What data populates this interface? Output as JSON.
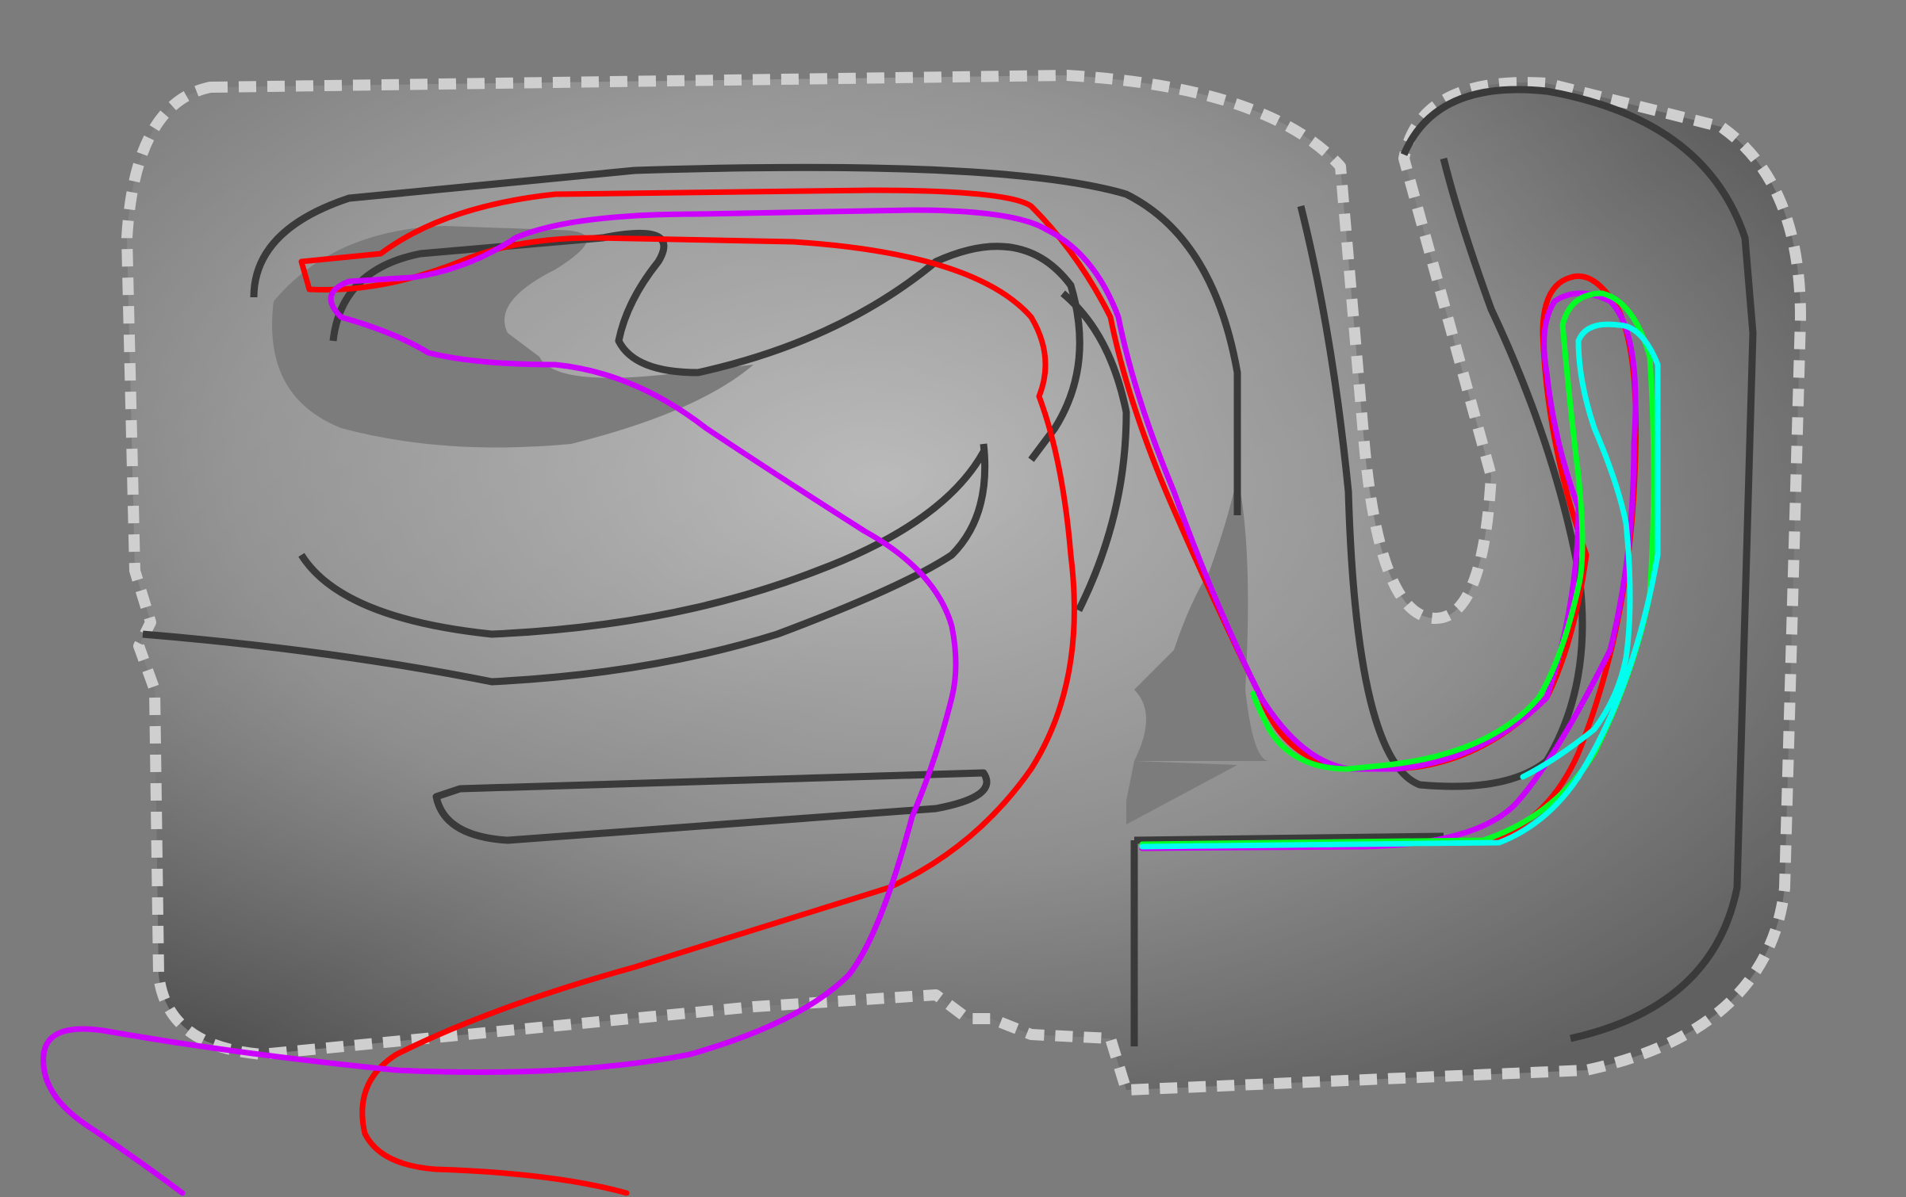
{
  "scene": {
    "background_color": "#7c7c7c",
    "track_surface_color": "#5e5e5e",
    "track_highlight_color": "#b9b9b9",
    "wall_color": "#3a3a3a",
    "border_color": "#cfcfcf"
  },
  "trajectories": [
    {
      "id": "red",
      "color": "#ff0000"
    },
    {
      "id": "magenta",
      "color": "#cc00ff"
    },
    {
      "id": "green",
      "color": "#00ff22"
    },
    {
      "id": "cyan",
      "color": "#00ffee"
    }
  ]
}
